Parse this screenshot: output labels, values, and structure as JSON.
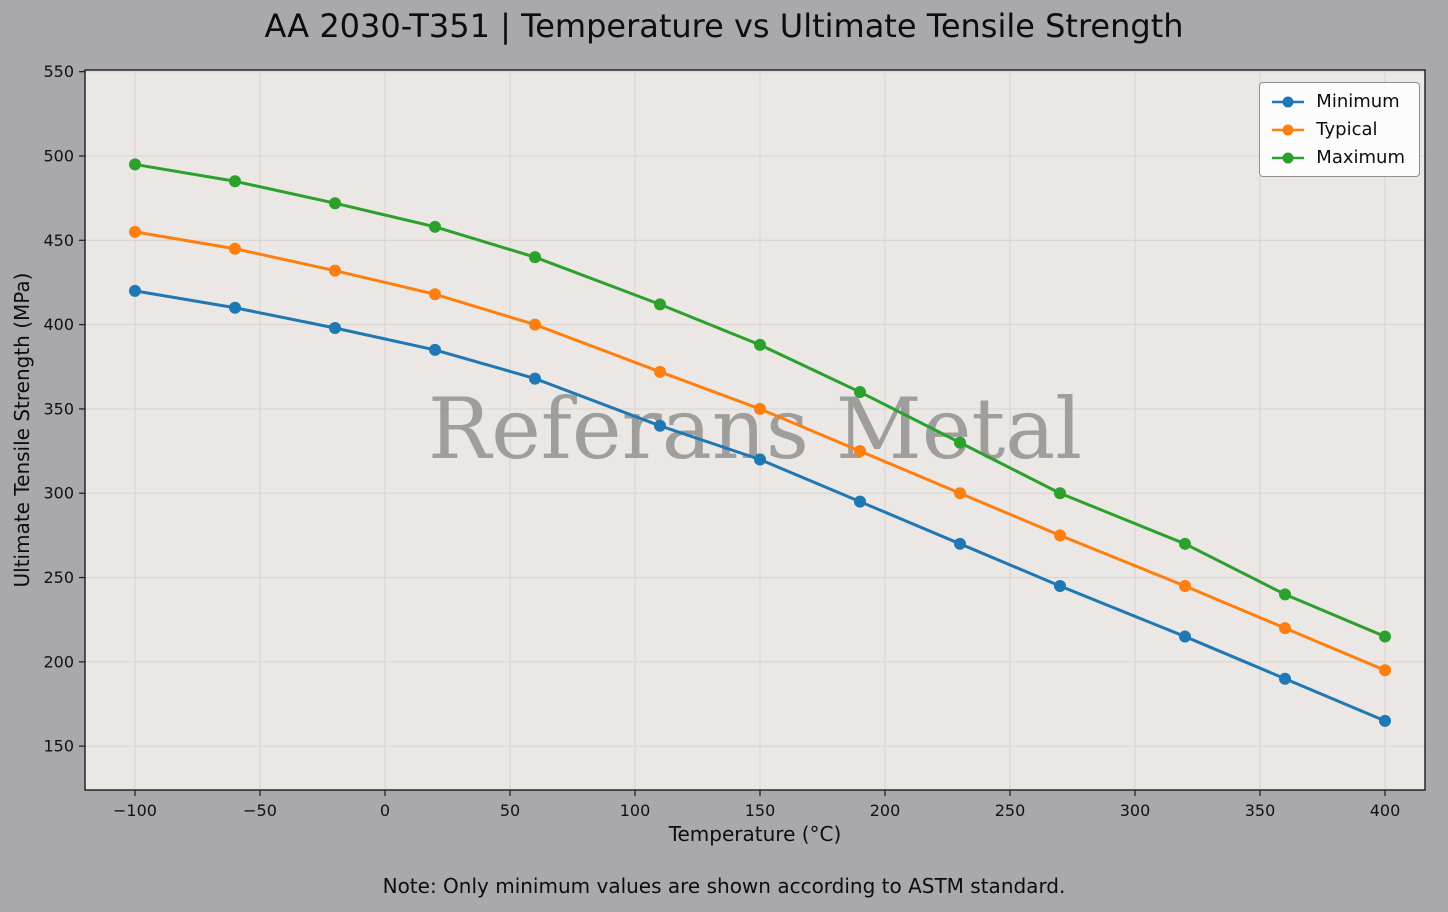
{
  "chart_data": {
    "type": "line",
    "title": "AA 2030-T351 | Temperature vs Ultimate Tensile Strength",
    "xlabel": "Temperature (°C)",
    "ylabel": "Ultimate Tensile Strength (MPa)",
    "note": "Note: Only minimum values are shown according to ASTM standard.",
    "watermark": "Referans Metal",
    "x": [
      -100,
      -60,
      -20,
      20,
      60,
      110,
      150,
      190,
      230,
      270,
      320,
      360,
      400
    ],
    "series": [
      {
        "name": "Minimum",
        "color": "#1f77b4",
        "values": [
          420,
          410,
          398,
          385,
          368,
          340,
          320,
          295,
          270,
          245,
          215,
          190,
          165
        ]
      },
      {
        "name": "Typical",
        "color": "#ff7f0e",
        "values": [
          455,
          445,
          432,
          418,
          400,
          372,
          350,
          325,
          300,
          275,
          245,
          220,
          195
        ]
      },
      {
        "name": "Maximum",
        "color": "#2ca02c",
        "values": [
          495,
          485,
          472,
          458,
          440,
          412,
          388,
          360,
          330,
          300,
          270,
          240,
          215
        ]
      }
    ],
    "xlim": [
      -120,
      416
    ],
    "ylim": [
      124,
      551
    ],
    "x_ticks": [
      -100,
      -50,
      0,
      50,
      100,
      150,
      200,
      250,
      300,
      350,
      400
    ],
    "y_ticks": [
      150,
      200,
      250,
      300,
      350,
      400,
      450,
      500,
      550
    ],
    "legend": {
      "position": "top-right",
      "entries": [
        "Minimum",
        "Typical",
        "Maximum"
      ]
    },
    "grid": true,
    "colors": {
      "figure_bg": "#a9a9ad",
      "axes_bg": "#eae7e4",
      "grid": "#d9d5d1",
      "spine": "#1b1b1b",
      "tick_text": "#111111",
      "watermark": "#8c8c8c"
    }
  }
}
